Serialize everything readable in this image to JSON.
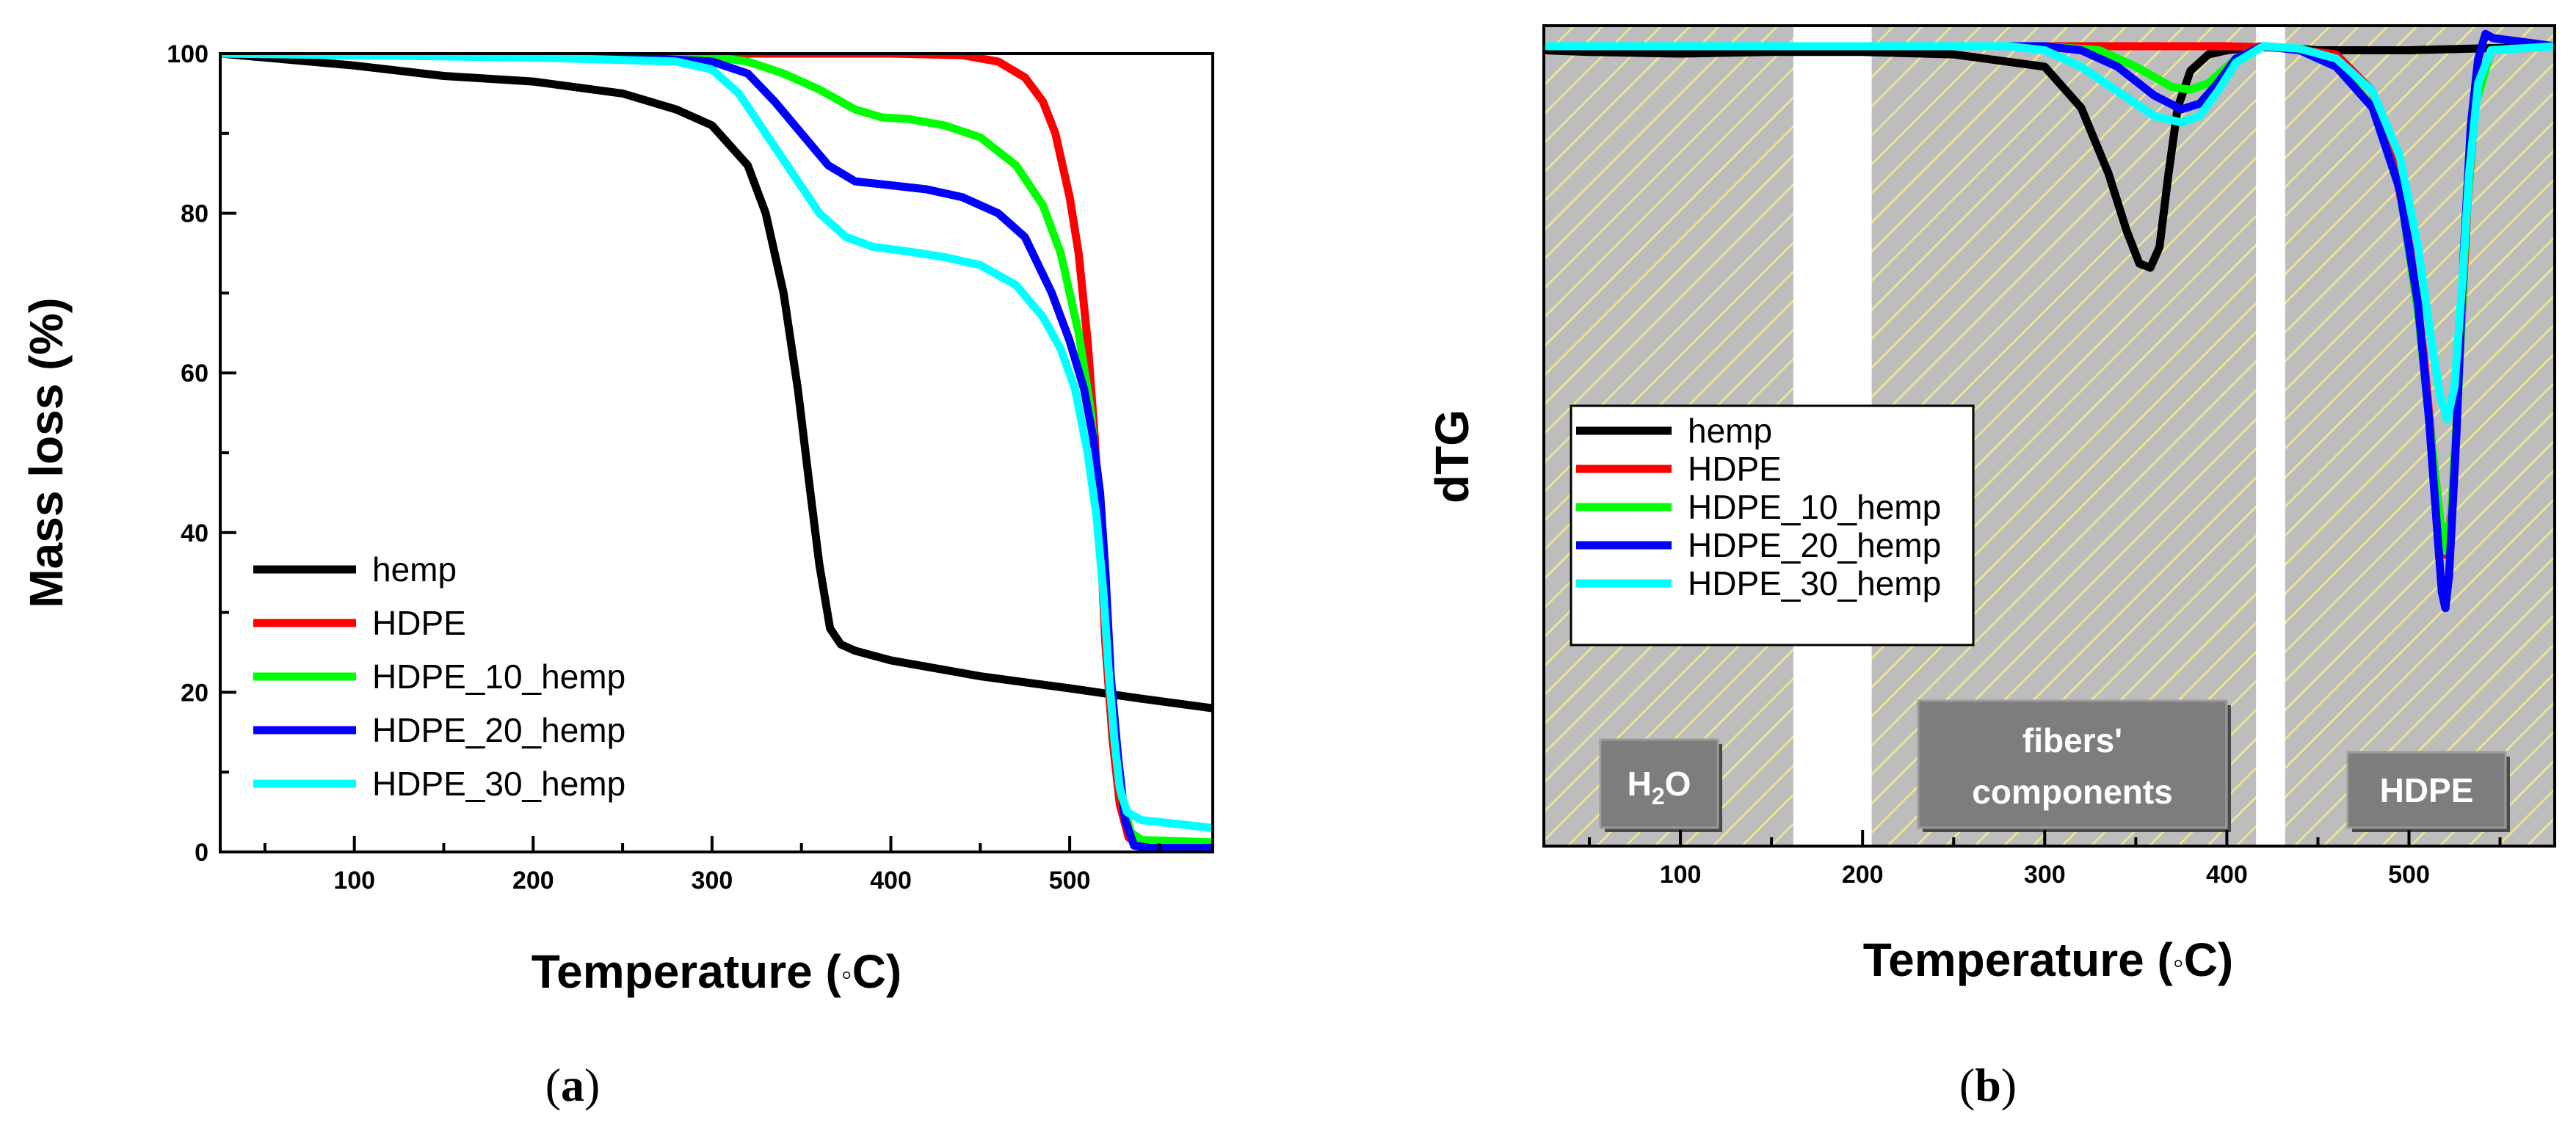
{
  "chart_data": [
    {
      "id": "a",
      "type": "line",
      "caption_label": "a",
      "xlabel": "Temperature (",
      "xlabel_degree": "◦",
      "xlabel_unit": "C)",
      "ylabel": "Mass loss (%)",
      "xlim": [
        25,
        580
      ],
      "ylim": [
        0,
        100
      ],
      "xticks": [
        "100",
        "200",
        "300",
        "400",
        "500"
      ],
      "yticks": [
        "0",
        "20",
        "40",
        "60",
        "80",
        "100"
      ],
      "legend_position": "bottom-left",
      "series": [
        {
          "name": "hemp",
          "color": "#000000",
          "points": [
            [
              25,
              100
            ],
            [
              50,
              99.5
            ],
            [
              100,
              98.5
            ],
            [
              150,
              97.2
            ],
            [
              200,
              96.5
            ],
            [
              250,
              95
            ],
            [
              280,
              93
            ],
            [
              300,
              91
            ],
            [
              320,
              86
            ],
            [
              330,
              80
            ],
            [
              340,
              70
            ],
            [
              348,
              58
            ],
            [
              355,
              45
            ],
            [
              360,
              36
            ],
            [
              366,
              28
            ],
            [
              372,
              26
            ],
            [
              380,
              25.2
            ],
            [
              400,
              24
            ],
            [
              450,
              22
            ],
            [
              500,
              20.5
            ],
            [
              540,
              19.2
            ],
            [
              580,
              18
            ]
          ]
        },
        {
          "name": "HDPE",
          "color": "#ff0000",
          "points": [
            [
              25,
              100
            ],
            [
              300,
              100
            ],
            [
              400,
              100
            ],
            [
              440,
              99.8
            ],
            [
              460,
              99
            ],
            [
              475,
              97
            ],
            [
              485,
              94
            ],
            [
              492,
              90
            ],
            [
              500,
              82
            ],
            [
              505,
              75
            ],
            [
              510,
              64
            ],
            [
              514,
              52
            ],
            [
              517,
              40
            ],
            [
              520,
              26
            ],
            [
              524,
              14
            ],
            [
              528,
              6
            ],
            [
              533,
              1.8
            ],
            [
              540,
              0.7
            ],
            [
              580,
              0.5
            ]
          ]
        },
        {
          "name": "HDPE_10_hemp",
          "color": "#00ff00",
          "points": [
            [
              25,
              100
            ],
            [
              280,
              99.8
            ],
            [
              300,
              99.6
            ],
            [
              320,
              99
            ],
            [
              340,
              97.5
            ],
            [
              360,
              95.5
            ],
            [
              380,
              93
            ],
            [
              395,
              92
            ],
            [
              410,
              91.8
            ],
            [
              430,
              91
            ],
            [
              450,
              89.5
            ],
            [
              470,
              86
            ],
            [
              485,
              81
            ],
            [
              495,
              75
            ],
            [
              505,
              65
            ],
            [
              512,
              55
            ],
            [
              517,
              42
            ],
            [
              521,
              28
            ],
            [
              525,
              15
            ],
            [
              529,
              7
            ],
            [
              534,
              2.5
            ],
            [
              540,
              1.5
            ],
            [
              580,
              1.2
            ]
          ]
        },
        {
          "name": "HDPE_20_hemp",
          "color": "#0000ff",
          "points": [
            [
              25,
              100
            ],
            [
              250,
              99.6
            ],
            [
              300,
              99
            ],
            [
              320,
              97.5
            ],
            [
              335,
              94
            ],
            [
              350,
              90
            ],
            [
              365,
              86
            ],
            [
              380,
              84
            ],
            [
              400,
              83.5
            ],
            [
              420,
              83
            ],
            [
              440,
              82
            ],
            [
              460,
              80
            ],
            [
              475,
              77
            ],
            [
              490,
              70
            ],
            [
              500,
              64
            ],
            [
              508,
              58
            ],
            [
              513,
              52
            ],
            [
              517,
              45
            ],
            [
              520,
              35
            ],
            [
              523,
              22
            ],
            [
              527,
              12
            ],
            [
              531,
              4
            ],
            [
              536,
              0.8
            ],
            [
              545,
              0.5
            ],
            [
              580,
              0.5
            ]
          ]
        },
        {
          "name": "HDPE_30_hemp",
          "color": "#00ffff",
          "points": [
            [
              25,
              100
            ],
            [
              200,
              99.5
            ],
            [
              250,
              99.2
            ],
            [
              280,
              99
            ],
            [
              300,
              98
            ],
            [
              315,
              95
            ],
            [
              330,
              90
            ],
            [
              345,
              85
            ],
            [
              360,
              80
            ],
            [
              375,
              77
            ],
            [
              390,
              75.8
            ],
            [
              410,
              75.2
            ],
            [
              430,
              74.5
            ],
            [
              450,
              73.5
            ],
            [
              470,
              71
            ],
            [
              485,
              67
            ],
            [
              495,
              63
            ],
            [
              503,
              58
            ],
            [
              510,
              50
            ],
            [
              515,
              42
            ],
            [
              519,
              32
            ],
            [
              522,
              22
            ],
            [
              525,
              14
            ],
            [
              528,
              8
            ],
            [
              532,
              5
            ],
            [
              540,
              4
            ],
            [
              560,
              3.5
            ],
            [
              580,
              3
            ]
          ]
        }
      ]
    },
    {
      "id": "b",
      "type": "line",
      "caption_label": "b",
      "xlabel": "Temperature (",
      "xlabel_degree": "◦",
      "xlabel_unit": "C)",
      "ylabel": "dTG",
      "xlim": [
        25,
        580
      ],
      "ylim": [
        0,
        100
      ],
      "xticks": [
        "100",
        "200",
        "300",
        "400",
        "500"
      ],
      "legend_position": "middle-left",
      "regions": [
        {
          "label": "H",
          "subscript": "2",
          "label_end": "O",
          "x_range": [
            25,
            162
          ]
        },
        {
          "label": "fibers'",
          "label_line2": "components",
          "x_range": [
            205,
            416
          ]
        },
        {
          "label": "HDPE",
          "x_range": [
            432,
            580
          ]
        }
      ],
      "series": [
        {
          "name": "hemp",
          "color": "#000000",
          "points": [
            [
              25,
              97
            ],
            [
              50,
              96.8
            ],
            [
              100,
              96.6
            ],
            [
              150,
              96.8
            ],
            [
              200,
              96.8
            ],
            [
              250,
              96.5
            ],
            [
              300,
              95
            ],
            [
              320,
              90
            ],
            [
              335,
              82
            ],
            [
              345,
              75
            ],
            [
              352,
              71
            ],
            [
              358,
              70.5
            ],
            [
              363,
              73
            ],
            [
              368,
              82
            ],
            [
              373,
              90
            ],
            [
              380,
              94.5
            ],
            [
              390,
              96.5
            ],
            [
              400,
              97
            ],
            [
              420,
              97.5
            ],
            [
              450,
              97
            ],
            [
              500,
              97
            ],
            [
              550,
              97.3
            ],
            [
              580,
              97.5
            ]
          ]
        },
        {
          "name": "HDPE",
          "color": "#ff0000",
          "points": [
            [
              25,
              97.5
            ],
            [
              300,
              97.5
            ],
            [
              400,
              97.5
            ],
            [
              430,
              97.3
            ],
            [
              460,
              96.5
            ],
            [
              480,
              92
            ],
            [
              490,
              85
            ],
            [
              500,
              74
            ],
            [
              508,
              60
            ],
            [
              513,
              48
            ],
            [
              517,
              40
            ],
            [
              520,
              35.5
            ],
            [
              524,
              42
            ],
            [
              528,
              60
            ],
            [
              532,
              78
            ],
            [
              537,
              92
            ],
            [
              545,
              97
            ],
            [
              580,
              97.5
            ]
          ]
        },
        {
          "name": "HDPE_10_hemp",
          "color": "#00ff00",
          "points": [
            [
              25,
              97.5
            ],
            [
              300,
              97.5
            ],
            [
              330,
              97
            ],
            [
              350,
              95
            ],
            [
              370,
              92.5
            ],
            [
              380,
              92.2
            ],
            [
              390,
              93
            ],
            [
              405,
              96
            ],
            [
              420,
              97.5
            ],
            [
              440,
              97.2
            ],
            [
              460,
              95.5
            ],
            [
              480,
              90
            ],
            [
              495,
              80
            ],
            [
              505,
              65
            ],
            [
              512,
              50
            ],
            [
              517,
              40
            ],
            [
              520,
              36
            ],
            [
              523,
              40
            ],
            [
              527,
              55
            ],
            [
              531,
              75
            ],
            [
              536,
              90
            ],
            [
              545,
              97
            ],
            [
              580,
              97.5
            ]
          ]
        },
        {
          "name": "HDPE_20_hemp",
          "color": "#0000ff",
          "points": [
            [
              25,
              97.5
            ],
            [
              300,
              97.5
            ],
            [
              320,
              97
            ],
            [
              340,
              95
            ],
            [
              360,
              91.5
            ],
            [
              375,
              89.8
            ],
            [
              385,
              90.5
            ],
            [
              395,
              93
            ],
            [
              405,
              96
            ],
            [
              420,
              97.5
            ],
            [
              440,
              97
            ],
            [
              460,
              95
            ],
            [
              480,
              90
            ],
            [
              495,
              80
            ],
            [
              505,
              66
            ],
            [
              511,
              52
            ],
            [
              515,
              40
            ],
            [
              518,
              31
            ],
            [
              520,
              29
            ],
            [
              522,
              33
            ],
            [
              526,
              50
            ],
            [
              530,
              72
            ],
            [
              534,
              88
            ],
            [
              538,
              96
            ],
            [
              542,
              99
            ],
            [
              546,
              98.5
            ],
            [
              580,
              97.5
            ]
          ]
        },
        {
          "name": "HDPE_30_hemp",
          "color": "#00ffff",
          "points": [
            [
              25,
              97.5
            ],
            [
              280,
              97.5
            ],
            [
              300,
              97
            ],
            [
              320,
              95
            ],
            [
              340,
              92
            ],
            [
              360,
              89
            ],
            [
              375,
              88.2
            ],
            [
              385,
              89
            ],
            [
              395,
              92
            ],
            [
              405,
              95.5
            ],
            [
              420,
              97.5
            ],
            [
              440,
              97.2
            ],
            [
              460,
              96
            ],
            [
              480,
              92
            ],
            [
              495,
              84
            ],
            [
              505,
              73
            ],
            [
              512,
              62
            ],
            [
              517,
              55
            ],
            [
              521,
              52
            ],
            [
              525,
              56
            ],
            [
              529,
              68
            ],
            [
              533,
              82
            ],
            [
              538,
              93
            ],
            [
              545,
              97
            ],
            [
              580,
              97.5
            ]
          ]
        }
      ]
    }
  ]
}
